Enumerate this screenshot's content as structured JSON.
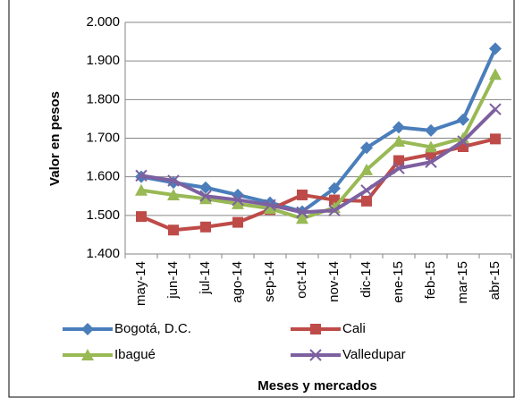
{
  "chart_data": {
    "type": "line",
    "x_label": "Meses y mercados",
    "y_label": "Valor en pesos",
    "categories": [
      "may-14",
      "jun-14",
      "jul-14",
      "ago-14",
      "sep-14",
      "oct-14",
      "nov-14",
      "dic-14",
      "ene-15",
      "feb-15",
      "mar-15",
      "abr-15"
    ],
    "series": [
      {
        "name": "Bogotá, D.C.",
        "color": "#4a7ebb",
        "marker": "diamond",
        "values": [
          1600,
          1585,
          1572,
          1553,
          1533,
          1510,
          1570,
          1675,
          1728,
          1720,
          1748,
          1932
        ]
      },
      {
        "name": "Cali",
        "color": "#be4b48",
        "marker": "square",
        "values": [
          1497,
          1462,
          1470,
          1482,
          1515,
          1553,
          1540,
          1537,
          1642,
          1658,
          1678,
          1698
        ]
      },
      {
        "name": "Ibagué",
        "color": "#98b954",
        "marker": "triangle",
        "values": [
          1565,
          1553,
          1543,
          1530,
          1518,
          1492,
          1520,
          1618,
          1692,
          1677,
          1700,
          1865
        ]
      },
      {
        "name": "Valledupar",
        "color": "#7d60a0",
        "marker": "x",
        "values": [
          1603,
          1590,
          1550,
          1540,
          1527,
          1508,
          1513,
          1565,
          1622,
          1638,
          1692,
          1775
        ]
      }
    ],
    "ylim": [
      1400,
      2000
    ],
    "yticks": [
      {
        "value": 1400,
        "label": "1.400"
      },
      {
        "value": 1500,
        "label": "1.500"
      },
      {
        "value": 1600,
        "label": "1.600"
      },
      {
        "value": 1700,
        "label": "1.700"
      },
      {
        "value": 1800,
        "label": "1.800"
      },
      {
        "value": 1900,
        "label": "1.900"
      },
      {
        "value": 2000,
        "label": "2.000"
      }
    ],
    "grid": true,
    "legend": "bottom"
  }
}
